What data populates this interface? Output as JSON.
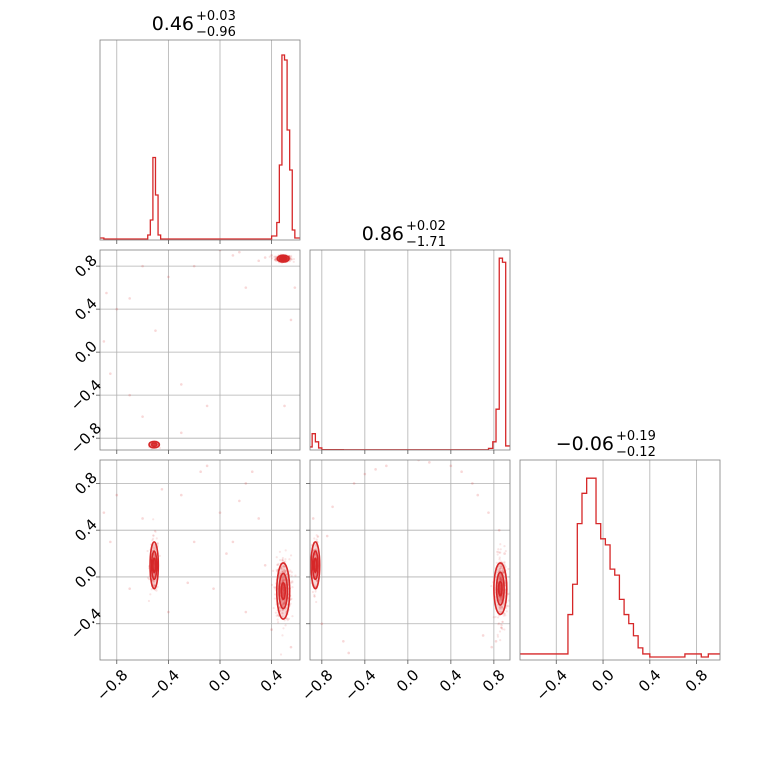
{
  "chart_data": {
    "type": "corner",
    "color": "#d62728",
    "grid": true,
    "panels": [
      {
        "id": "hist-0",
        "type": "histogram",
        "row": 0,
        "col": 0,
        "title": {
          "value": "0.46",
          "plus": "+0.03",
          "minus": "−0.96"
        },
        "xlim": [
          -0.93,
          0.62
        ],
        "xgrid": [
          -0.8,
          -0.4,
          0.0,
          0.4
        ],
        "bins": [
          [
            -0.93,
            -0.9
          ],
          [
            -0.9,
            -0.56
          ],
          [
            -0.56,
            -0.54
          ],
          [
            -0.54,
            -0.52
          ],
          [
            -0.52,
            -0.5
          ],
          [
            -0.5,
            -0.48
          ],
          [
            -0.48,
            -0.46
          ],
          [
            -0.46,
            0.4
          ],
          [
            0.4,
            0.44
          ],
          [
            0.44,
            0.46
          ],
          [
            0.46,
            0.48
          ],
          [
            0.48,
            0.5
          ],
          [
            0.5,
            0.52
          ],
          [
            0.52,
            0.54
          ],
          [
            0.54,
            0.56
          ],
          [
            0.56,
            0.58
          ],
          [
            0.58,
            0.62
          ]
        ],
        "counts": [
          4,
          2,
          10,
          40,
          165,
          90,
          10,
          2,
          8,
          35,
          150,
          370,
          360,
          220,
          140,
          20,
          4
        ],
        "ymax": 400
      },
      {
        "id": "hist-1",
        "type": "histogram",
        "row": 1,
        "col": 1,
        "title": {
          "value": "0.86",
          "plus": "+0.02",
          "minus": "−1.71"
        },
        "xlim": [
          -0.91,
          0.95
        ],
        "xgrid": [
          -0.8,
          -0.4,
          0.0,
          0.4,
          0.8
        ],
        "bins": [
          [
            -0.91,
            -0.89
          ],
          [
            -0.89,
            -0.86
          ],
          [
            -0.86,
            -0.83
          ],
          [
            -0.83,
            -0.8
          ],
          [
            -0.8,
            -0.6
          ],
          [
            -0.6,
            0.75
          ],
          [
            0.75,
            0.79
          ],
          [
            0.79,
            0.82
          ],
          [
            0.82,
            0.85
          ],
          [
            0.85,
            0.88
          ],
          [
            0.88,
            0.91
          ],
          [
            0.91,
            0.95
          ]
        ],
        "counts": [
          15,
          80,
          40,
          10,
          2,
          1,
          8,
          40,
          200,
          940,
          920,
          20
        ],
        "ymax": 980
      },
      {
        "id": "hist-2",
        "type": "histogram",
        "row": 2,
        "col": 2,
        "title": {
          "value": "−0.06",
          "plus": "+0.19",
          "minus": "−0.12"
        },
        "xlim": [
          -0.71,
          1.0
        ],
        "xgrid": [
          -0.4,
          0.0,
          0.4,
          0.8
        ],
        "bins": [
          [
            -0.71,
            -0.3
          ],
          [
            -0.3,
            -0.26
          ],
          [
            -0.26,
            -0.22
          ],
          [
            -0.22,
            -0.18
          ],
          [
            -0.18,
            -0.14
          ],
          [
            -0.14,
            -0.1
          ],
          [
            -0.1,
            -0.06
          ],
          [
            -0.06,
            -0.02
          ],
          [
            -0.02,
            0.02
          ],
          [
            0.02,
            0.06
          ],
          [
            0.06,
            0.1
          ],
          [
            0.1,
            0.14
          ],
          [
            0.14,
            0.18
          ],
          [
            0.18,
            0.22
          ],
          [
            0.22,
            0.26
          ],
          [
            0.26,
            0.3
          ],
          [
            0.3,
            0.34
          ],
          [
            0.34,
            0.4
          ],
          [
            0.4,
            0.7
          ],
          [
            0.7,
            0.84
          ],
          [
            0.84,
            0.9
          ],
          [
            0.9,
            1.0
          ]
        ],
        "counts": [
          2,
          15,
          25,
          45,
          55,
          60,
          60,
          45,
          40,
          38,
          30,
          28,
          20,
          15,
          12,
          8,
          4,
          2,
          1,
          2,
          1,
          2
        ],
        "ymax": 66
      },
      {
        "id": "scatter-1-0",
        "type": "scatter2d",
        "row": 1,
        "col": 0,
        "xlim": [
          -0.93,
          0.62
        ],
        "ylim": [
          -0.91,
          0.95
        ],
        "xgrid": [
          -0.8,
          -0.4,
          0.0,
          0.4
        ],
        "ygrid": [
          -0.8,
          -0.4,
          0.0,
          0.4,
          0.8
        ],
        "clusters": [
          {
            "center": [
              0.49,
              0.87
            ],
            "spread": [
              0.03,
              0.015
            ],
            "n": 260
          },
          {
            "center": [
              -0.51,
              -0.86
            ],
            "spread": [
              0.02,
              0.012
            ],
            "n": 80
          }
        ],
        "scatter_points": [
          [
            -0.8,
            0.4
          ],
          [
            -0.7,
            0.5
          ],
          [
            -0.2,
            0.8
          ],
          [
            0.1,
            0.9
          ],
          [
            0.3,
            0.85
          ],
          [
            -0.5,
            0.2
          ],
          [
            -0.3,
            -0.3
          ],
          [
            0.5,
            -0.5
          ],
          [
            -0.9,
            0.1
          ],
          [
            -0.6,
            -0.6
          ],
          [
            0.2,
            0.6
          ],
          [
            -0.1,
            -0.5
          ],
          [
            0.55,
            0.3
          ],
          [
            -0.85,
            -0.2
          ],
          [
            0.0,
            0.95
          ],
          [
            -0.4,
            0.7
          ],
          [
            0.4,
            0.9
          ],
          [
            -0.7,
            -0.4
          ],
          [
            -0.3,
            -0.75
          ],
          [
            0.15,
            0.93
          ],
          [
            0.35,
            0.88
          ],
          [
            -0.6,
            0.8
          ],
          [
            -0.88,
            0.55
          ],
          [
            0.58,
            0.6
          ]
        ],
        "contours": [
          {
            "center": [
              0.49,
              0.87
            ],
            "rx": 0.045,
            "ry": 0.032,
            "level": "outer"
          },
          {
            "center": [
              0.49,
              0.87
            ],
            "rx": 0.028,
            "ry": 0.02,
            "level": "mid"
          },
          {
            "center": [
              0.49,
              0.87
            ],
            "rx": 0.014,
            "ry": 0.01,
            "level": "inner"
          },
          {
            "center": [
              -0.51,
              -0.86
            ],
            "rx": 0.04,
            "ry": 0.03,
            "level": "outer"
          },
          {
            "center": [
              -0.51,
              -0.86
            ],
            "rx": 0.02,
            "ry": 0.015,
            "level": "inner"
          }
        ]
      },
      {
        "id": "scatter-2-0",
        "type": "scatter2d",
        "row": 2,
        "col": 0,
        "xlim": [
          -0.93,
          0.62
        ],
        "ylim": [
          -0.71,
          1.0
        ],
        "xgrid": [
          -0.8,
          -0.4,
          0.0,
          0.4
        ],
        "ygrid": [
          -0.4,
          0.0,
          0.4,
          0.8
        ],
        "clusters": [
          {
            "center": [
              -0.51,
              0.1
            ],
            "spread": [
              0.018,
              0.12
            ],
            "n": 160
          },
          {
            "center": [
              0.49,
              -0.1
            ],
            "spread": [
              0.03,
              0.14
            ],
            "n": 320
          }
        ],
        "scatter_points": [
          [
            -0.8,
            0.7
          ],
          [
            -0.6,
            0.5
          ],
          [
            -0.3,
            0.7
          ],
          [
            -0.1,
            0.95
          ],
          [
            0.2,
            0.8
          ],
          [
            0.3,
            0.5
          ],
          [
            -0.2,
            0.3
          ],
          [
            0.1,
            0.3
          ],
          [
            -0.4,
            -0.3
          ],
          [
            0.2,
            -0.3
          ],
          [
            -0.7,
            -0.1
          ],
          [
            0.0,
            0.55
          ],
          [
            0.35,
            0.1
          ],
          [
            -0.15,
            0.9
          ],
          [
            -0.85,
            0.3
          ],
          [
            -0.45,
            0.75
          ],
          [
            0.15,
            0.65
          ],
          [
            0.4,
            -0.45
          ],
          [
            0.55,
            -0.6
          ],
          [
            -0.05,
            -0.1
          ],
          [
            0.25,
            0.9
          ],
          [
            -0.9,
            0.55
          ],
          [
            0.05,
            0.2
          ],
          [
            -0.25,
            -0.05
          ]
        ],
        "contours": [
          {
            "center": [
              -0.51,
              0.1
            ],
            "rx": 0.032,
            "ry": 0.2,
            "level": "outer"
          },
          {
            "center": [
              -0.51,
              0.1
            ],
            "rx": 0.02,
            "ry": 0.12,
            "level": "mid"
          },
          {
            "center": [
              -0.51,
              0.1
            ],
            "rx": 0.01,
            "ry": 0.06,
            "level": "inner"
          },
          {
            "center": [
              0.49,
              -0.12
            ],
            "rx": 0.05,
            "ry": 0.24,
            "level": "outer"
          },
          {
            "center": [
              0.49,
              -0.12
            ],
            "rx": 0.032,
            "ry": 0.15,
            "level": "mid"
          },
          {
            "center": [
              0.49,
              -0.12
            ],
            "rx": 0.016,
            "ry": 0.07,
            "level": "inner"
          }
        ]
      },
      {
        "id": "scatter-2-1",
        "type": "scatter2d",
        "row": 2,
        "col": 1,
        "xlim": [
          -0.91,
          0.95
        ],
        "ylim": [
          -0.71,
          1.0
        ],
        "xgrid": [
          -0.8,
          -0.4,
          0.0,
          0.4,
          0.8
        ],
        "ygrid": [
          -0.4,
          0.0,
          0.4,
          0.8
        ],
        "clusters": [
          {
            "center": [
              -0.86,
              0.1
            ],
            "spread": [
              0.015,
              0.12
            ],
            "n": 150
          },
          {
            "center": [
              0.87,
              -0.1
            ],
            "spread": [
              0.025,
              0.14
            ],
            "n": 320
          }
        ],
        "scatter_points": [
          [
            -0.7,
            0.6
          ],
          [
            -0.5,
            0.8
          ],
          [
            -0.2,
            0.95
          ],
          [
            0.1,
            1.0
          ],
          [
            0.4,
            0.95
          ],
          [
            0.6,
            0.8
          ],
          [
            0.75,
            0.55
          ],
          [
            -0.8,
            -0.4
          ],
          [
            -0.6,
            -0.55
          ],
          [
            -0.75,
            0.35
          ],
          [
            0.7,
            -0.5
          ],
          [
            0.82,
            -0.55
          ],
          [
            -0.4,
            0.88
          ],
          [
            0.5,
            0.9
          ],
          [
            0.85,
            0.4
          ],
          [
            -0.88,
            0.5
          ],
          [
            0.2,
            0.98
          ],
          [
            -0.3,
            0.92
          ],
          [
            0.65,
            0.7
          ],
          [
            0.9,
            0.2
          ],
          [
            -0.55,
            -0.65
          ],
          [
            0.78,
            -0.6
          ]
        ],
        "contours": [
          {
            "center": [
              -0.86,
              0.1
            ],
            "rx": 0.04,
            "ry": 0.2,
            "level": "outer"
          },
          {
            "center": [
              -0.86,
              0.1
            ],
            "rx": 0.025,
            "ry": 0.12,
            "level": "mid"
          },
          {
            "center": [
              -0.86,
              0.1
            ],
            "rx": 0.012,
            "ry": 0.06,
            "level": "inner"
          },
          {
            "center": [
              0.86,
              -0.1
            ],
            "rx": 0.06,
            "ry": 0.22,
            "level": "outer"
          },
          {
            "center": [
              0.86,
              -0.1
            ],
            "rx": 0.035,
            "ry": 0.14,
            "level": "mid"
          },
          {
            "center": [
              0.86,
              -0.1
            ],
            "rx": 0.016,
            "ry": 0.06,
            "level": "inner"
          }
        ]
      }
    ],
    "axes": {
      "left": [
        {
          "row": 1,
          "ticks": [
            "−0.8",
            "−0.4",
            "0.0",
            "0.4",
            "0.8"
          ],
          "values": [
            -0.8,
            -0.4,
            0.0,
            0.4,
            0.8
          ]
        },
        {
          "row": 2,
          "ticks": [
            "−0.4",
            "0.0",
            "0.4",
            "0.8"
          ],
          "values": [
            -0.4,
            0.0,
            0.4,
            0.8
          ]
        }
      ],
      "bottom": [
        {
          "col": 0,
          "ticks": [
            "−0.8",
            "−0.4",
            "0.0",
            "0.4"
          ],
          "values": [
            -0.8,
            -0.4,
            0.0,
            0.4
          ]
        },
        {
          "col": 1,
          "ticks": [
            "−0.8",
            "−0.4",
            "0.0",
            "0.4",
            "0.8"
          ],
          "values": [
            -0.8,
            -0.4,
            0.0,
            0.4,
            0.8
          ]
        },
        {
          "col": 2,
          "ticks": [
            "−0.4",
            "0.0",
            "0.4",
            "0.8"
          ],
          "values": [
            -0.4,
            0.0,
            0.4,
            0.8
          ]
        }
      ]
    }
  }
}
